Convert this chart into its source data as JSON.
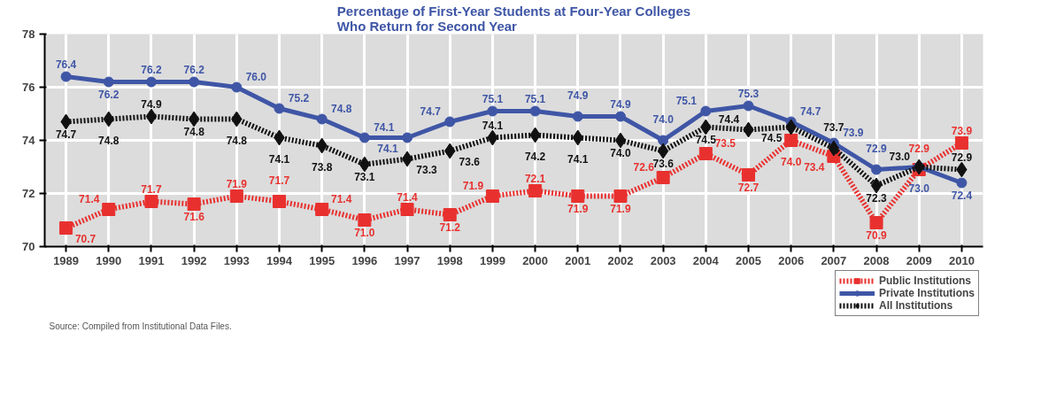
{
  "chart_data": {
    "type": "line",
    "title": "Percentage of First-Year Students at Four-Year Colleges\nWho Return for Second Year",
    "categories": [
      "1989",
      "1990",
      "1991",
      "1992",
      "1993",
      "1994",
      "1995",
      "1996",
      "1997",
      "1998",
      "1999",
      "2000",
      "2001",
      "2002",
      "2003",
      "2004",
      "2005",
      "2006",
      "2007",
      "2008",
      "2009",
      "2010"
    ],
    "series": [
      {
        "name": "Public Institutions",
        "color": "#e8312f",
        "marker": "square",
        "line_style": "dotted",
        "values": [
          70.7,
          71.4,
          71.7,
          71.6,
          71.9,
          71.7,
          71.4,
          71.0,
          71.4,
          71.2,
          71.9,
          72.1,
          71.9,
          71.9,
          72.6,
          73.5,
          72.7,
          74.0,
          73.4,
          70.9,
          72.9,
          73.9
        ],
        "value_labels": [
          "70.7",
          "71.4",
          "71.7",
          "71.6",
          "71.9",
          "71.7",
          "71.4",
          "71.0",
          "71.4",
          "71.2",
          "71.9",
          "72.1",
          "71.9",
          "71.9",
          "72.6",
          "73.5",
          "72.7",
          "74.0",
          "73.4",
          "70.9",
          "72.9",
          "73.9"
        ]
      },
      {
        "name": "Private Institutions",
        "color": "#3f56a6",
        "marker": "circle",
        "line_style": "solid",
        "values": [
          76.4,
          76.2,
          76.2,
          76.2,
          76.0,
          75.2,
          74.8,
          74.1,
          74.1,
          74.7,
          75.1,
          75.1,
          74.9,
          74.9,
          74.0,
          75.1,
          75.3,
          74.7,
          73.9,
          72.9,
          73.0,
          72.4
        ],
        "value_labels": [
          "76.4",
          "76.2",
          "76.2",
          "76.2",
          "76.0",
          "75.2",
          "74.8",
          "74.1",
          "74.1",
          "74.7",
          "75.1",
          "75.1",
          "74.9",
          "74.9",
          "74.0",
          "75.1",
          "75.3",
          "74.7",
          "73.9",
          "72.9",
          "73.0",
          "72.4"
        ]
      },
      {
        "name": "All Institutions",
        "color": "#111111",
        "marker": "diamond",
        "line_style": "dotted",
        "values": [
          74.7,
          74.8,
          74.9,
          74.8,
          74.8,
          74.1,
          73.8,
          73.1,
          73.3,
          73.6,
          74.1,
          74.2,
          74.1,
          74.0,
          73.6,
          74.5,
          74.4,
          74.5,
          73.7,
          72.3,
          73.0,
          72.9
        ],
        "value_labels": [
          "74.7",
          "74.8",
          "74.9",
          "74.8",
          "74.8",
          "74.1",
          "73.8",
          "73.1",
          "73.3",
          "73.6",
          "74.1",
          "74.2",
          "74.1",
          "74.0",
          "73.6",
          "74.5",
          "74.4",
          "74.5",
          "73.7",
          "72.3",
          "73.0",
          "72.9"
        ]
      }
    ],
    "ylim": [
      70,
      78
    ],
    "yticks": [
      70,
      72,
      74,
      76,
      78
    ],
    "grid": true,
    "legend": "bottom right",
    "annotations": [
      "Source: Compiled from Institutional Data Files."
    ]
  }
}
